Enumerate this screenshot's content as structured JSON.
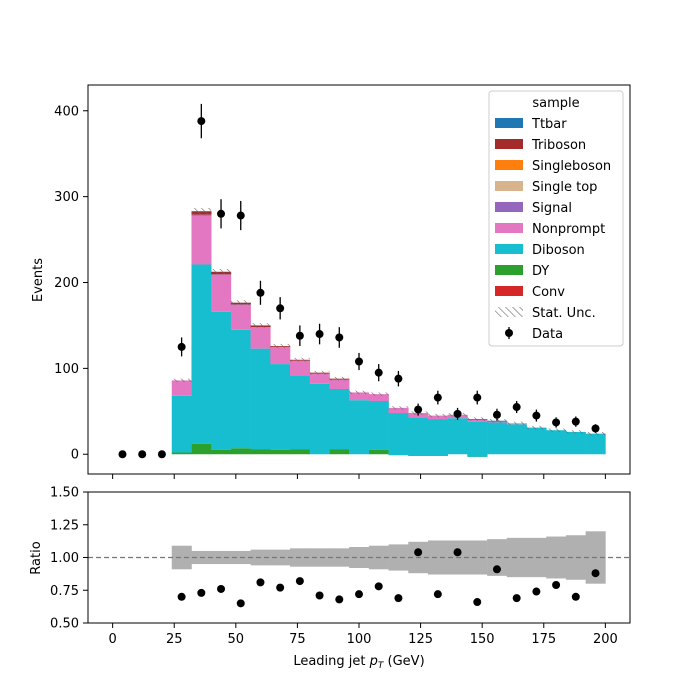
{
  "chart_data": [
    {
      "type": "bar",
      "panel": "main",
      "stacked": true,
      "ylabel": "Events",
      "xlim": [
        -10,
        210
      ],
      "ylim": [
        -23,
        430
      ],
      "yticks": [
        0,
        100,
        200,
        300,
        400
      ],
      "bins": {
        "start": 0,
        "width": 8,
        "count": 25
      },
      "series": [
        {
          "name": "Conv",
          "color": "#d62728",
          "values": [
            0,
            0,
            0,
            0,
            0,
            0,
            0,
            0,
            0,
            0,
            0,
            0,
            0,
            0,
            0,
            0,
            0,
            0,
            0,
            0,
            0,
            0,
            0,
            0,
            0
          ]
        },
        {
          "name": "DY",
          "color": "#2ca02c",
          "values": [
            0,
            0,
            0,
            2,
            12,
            5,
            7,
            6,
            5,
            6,
            0,
            6,
            0,
            5,
            -1,
            -2,
            -2,
            0,
            -3,
            0,
            0,
            0,
            0,
            0,
            0
          ]
        },
        {
          "name": "Diboson",
          "color": "#17becf",
          "values": [
            0,
            0,
            0,
            66,
            209,
            161,
            138,
            117,
            100,
            86,
            82,
            70,
            63,
            57,
            49,
            45,
            43,
            42,
            41,
            37,
            35,
            31,
            28,
            26,
            24
          ]
        },
        {
          "name": "Nonprompt",
          "color": "#e377c2",
          "values": [
            0,
            0,
            0,
            18,
            57,
            43,
            29,
            25,
            20,
            17,
            12,
            11,
            9,
            8,
            6,
            5,
            4,
            4,
            2,
            1,
            1,
            0,
            0,
            0,
            0
          ]
        },
        {
          "name": "Signal",
          "color": "#9467bd",
          "values": [
            0,
            0,
            0,
            0,
            1,
            0.5,
            0.5,
            0,
            0,
            0,
            0,
            0,
            0,
            0,
            0,
            0,
            0,
            0,
            0,
            0,
            0,
            0,
            0,
            0,
            0
          ]
        },
        {
          "name": "Single top",
          "color": "#d7b48e",
          "values": [
            0,
            0,
            0,
            0,
            0,
            0,
            0,
            0,
            0,
            0,
            0,
            0,
            0,
            0,
            0,
            0,
            0,
            0,
            0,
            0,
            0,
            0,
            0,
            0,
            0
          ]
        },
        {
          "name": "Singleboson",
          "color": "#ff7f0e",
          "values": [
            0,
            0,
            0,
            0,
            0,
            0,
            0,
            0,
            0,
            0,
            0,
            0,
            0,
            0,
            0,
            0,
            0,
            0,
            0,
            0,
            0,
            0,
            0,
            0,
            0
          ]
        },
        {
          "name": "Triboson",
          "color": "#a52a2a",
          "values": [
            0,
            0,
            0,
            0,
            4,
            3,
            2,
            2,
            1,
            1,
            1,
            1,
            0,
            0,
            0,
            0,
            0,
            0,
            0,
            0,
            0,
            0,
            0,
            0,
            0
          ]
        },
        {
          "name": "Ttbar",
          "color": "#1f77b4",
          "values": [
            0,
            0,
            0,
            0,
            0,
            0,
            0,
            0,
            0,
            0,
            0,
            0,
            0,
            0,
            0,
            0,
            0,
            0,
            1,
            1,
            0,
            0,
            0,
            0,
            0
          ]
        }
      ],
      "data": {
        "name": "Data",
        "x": [
          4,
          12,
          20,
          28,
          36,
          44,
          52,
          60,
          68,
          76,
          84,
          92,
          100,
          108,
          116,
          124,
          132,
          140,
          148,
          156,
          164,
          172,
          180,
          188,
          196
        ],
        "y": [
          0,
          0,
          0,
          125,
          388,
          280,
          278,
          188,
          170,
          138,
          140,
          136,
          108,
          95,
          88,
          52,
          66,
          47,
          66,
          46,
          55,
          45,
          37,
          38,
          30
        ],
        "yerr": [
          0,
          0,
          0,
          11,
          20,
          17,
          17,
          14,
          13,
          12,
          12,
          12,
          10,
          10,
          9,
          7,
          8,
          7,
          8,
          7,
          7,
          7,
          6,
          6,
          5
        ]
      },
      "stat_unc": "Stat. Unc.",
      "legend": {
        "title": "sample",
        "placement": "top-right"
      }
    },
    {
      "type": "scatter",
      "panel": "ratio",
      "ylabel": "Ratio",
      "xlabel": "Leading jet  p_T (GeV)",
      "xlim": [
        -10,
        210
      ],
      "ylim": [
        0.5,
        1.5
      ],
      "yticks": [
        0.5,
        0.75,
        1.0,
        1.25,
        1.5
      ],
      "xticks": [
        0,
        25,
        50,
        75,
        100,
        125,
        150,
        175,
        200
      ],
      "reference_line": 1.0,
      "x": [
        28,
        36,
        44,
        52,
        60,
        68,
        76,
        84,
        92,
        100,
        108,
        116,
        124,
        132,
        140,
        148,
        156,
        164,
        172,
        180,
        188,
        196
      ],
      "y": [
        0.7,
        0.73,
        0.76,
        0.65,
        0.81,
        0.77,
        0.82,
        0.71,
        0.68,
        0.72,
        0.78,
        0.69,
        1.04,
        0.72,
        1.04,
        0.66,
        0.91,
        0.69,
        0.74,
        0.79,
        0.7,
        0.88
      ],
      "band_halfwidth": [
        0.09,
        0.05,
        0.05,
        0.05,
        0.06,
        0.06,
        0.07,
        0.07,
        0.07,
        0.08,
        0.09,
        0.1,
        0.12,
        0.13,
        0.13,
        0.13,
        0.14,
        0.15,
        0.15,
        0.16,
        0.17,
        0.2
      ]
    }
  ],
  "legend_items": [
    "Ttbar",
    "Triboson",
    "Singleboson",
    "Single top",
    "Signal",
    "Nonprompt",
    "Diboson",
    "DY",
    "Conv",
    "Stat. Unc.",
    "Data"
  ]
}
